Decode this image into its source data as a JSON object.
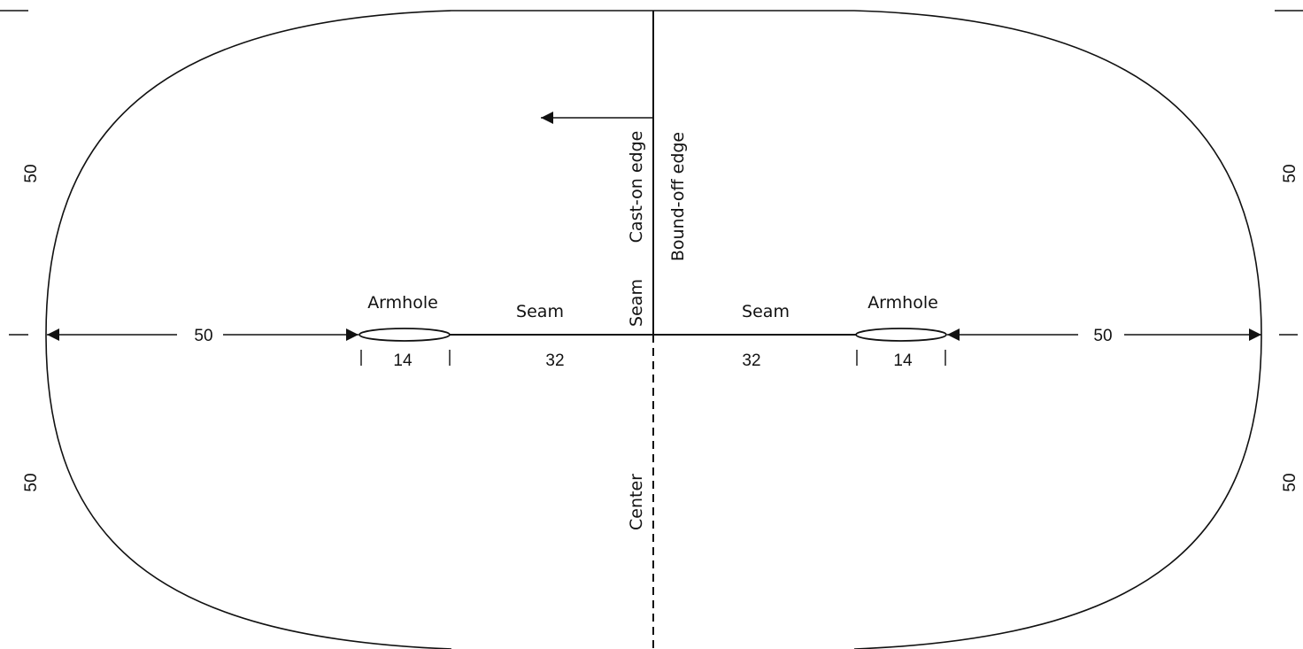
{
  "labels": {
    "armhole_left": "Armhole",
    "armhole_right": "Armhole",
    "seam_left": "Seam",
    "seam_right": "Seam",
    "seam_vertical": "Seam",
    "cast_on_edge": "Cast-on edge",
    "bound_off_edge": "Bound-off edge",
    "center": "Center"
  },
  "measurements": {
    "left_width": "50",
    "right_width": "50",
    "armhole_left": "14",
    "armhole_right": "14",
    "seam_left": "32",
    "seam_right": "32",
    "left_upper": "50",
    "left_lower": "50",
    "right_upper": "50",
    "right_lower": "50"
  },
  "colors": {
    "line": "#111111",
    "background": "#ffffff"
  }
}
